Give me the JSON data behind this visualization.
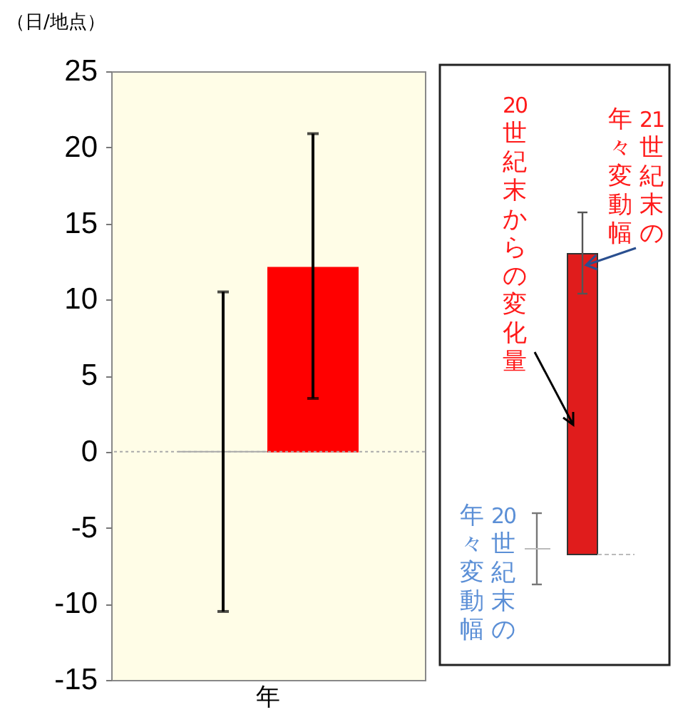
{
  "chart_data": {
    "type": "bar",
    "ylabel": "（日/地点）",
    "categories": [
      "年"
    ],
    "series": [
      {
        "color": "#aaaaaa",
        "values": [
          0
        ],
        "errors": [
          [
            -10.5,
            10.5
          ]
        ]
      },
      {
        "color": "#ff0000",
        "values": [
          12.1
        ],
        "errors": [
          [
            3.5,
            20.9
          ]
        ]
      }
    ],
    "ylim": [
      -15,
      25
    ],
    "yticks": [
      -15,
      -10,
      -5,
      0,
      5,
      10,
      15,
      20,
      25
    ],
    "grid": false,
    "ref_lines": [
      {
        "axis": "y",
        "value": 0,
        "color": "#aaaaaa",
        "line_style": "dotted"
      }
    ],
    "annotations": [
      "20世紀末からの変化量",
      "21世紀末の",
      "年々変動幅",
      "20世紀末の",
      "年々変動幅"
    ]
  }
}
